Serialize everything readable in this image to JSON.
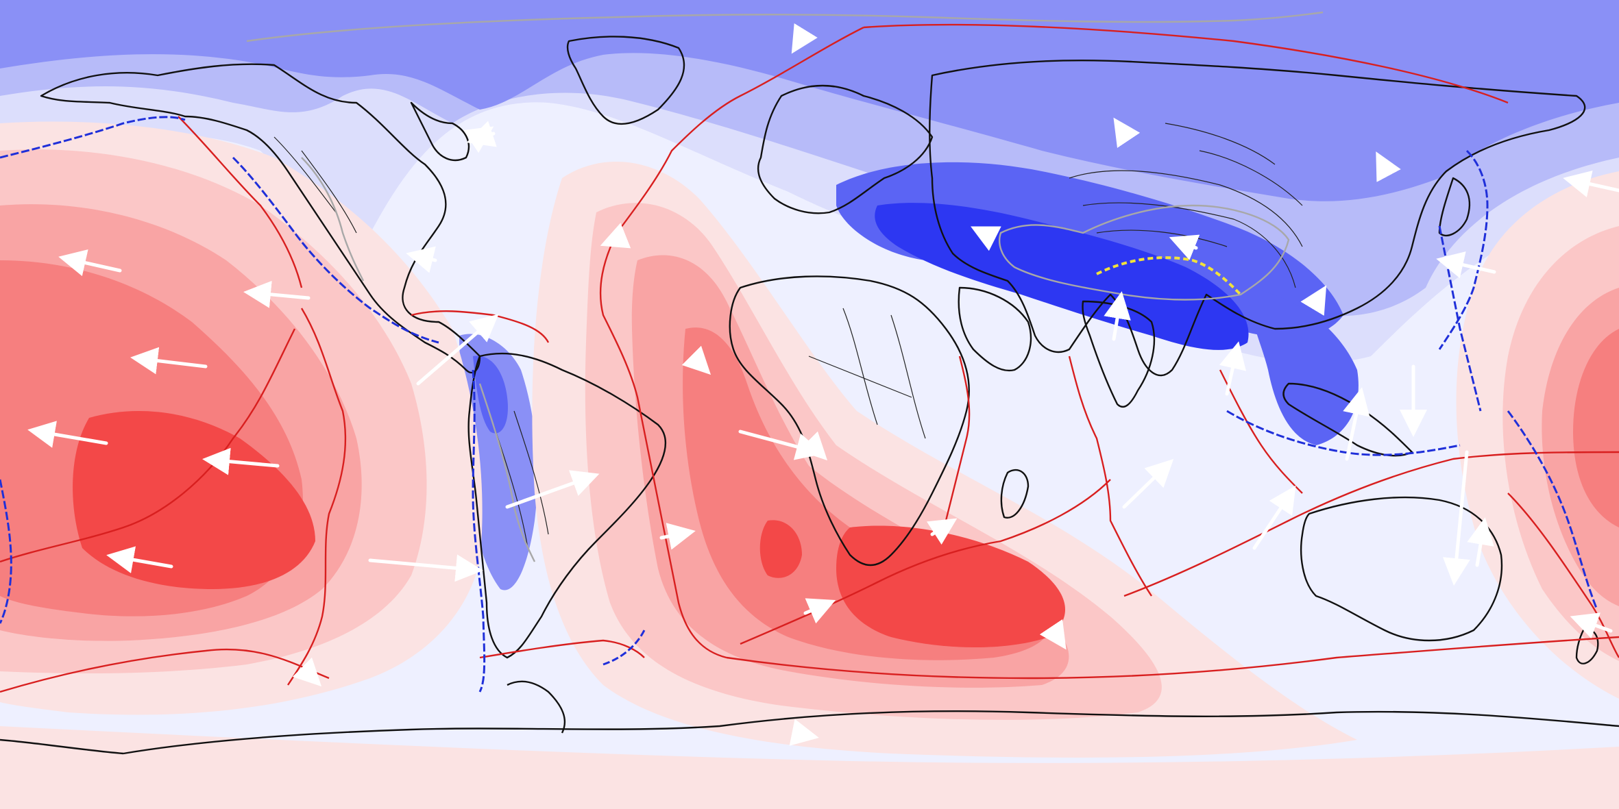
{
  "map": {
    "projection": "equirectangular",
    "layers": [
      "scalar-field-contours",
      "coastlines",
      "plate-boundaries",
      "subduction-zones",
      "collision-front",
      "velocity-arrows"
    ],
    "palette": {
      "blue_5": "#2d37f2",
      "blue_4": "#5b64f4",
      "blue_3": "#8a90f6",
      "blue_2": "#b7bbf9",
      "blue_1": "#dcdefc",
      "neutral": "#eef0ff",
      "red_1": "#fbe3e3",
      "red_2": "#fbc7c7",
      "red_3": "#f9a4a4",
      "red_4": "#f67f7f",
      "red_5": "#f34848",
      "coastline": "#111111",
      "plate_boundary": "#d81f1f",
      "subduction_zone": "#1f2fd9",
      "collision_front": "#f2e23a",
      "deformation_zone": "#a8a8a8",
      "velocity_arrow": "#ffffff"
    },
    "anomaly_highs": [
      "south-central-pacific",
      "south-africa-southern-ocean"
    ],
    "anomaly_lows": [
      "tibet-himalaya",
      "mediterranean-middle-east",
      "southeast-asia",
      "north-atlantic-arctic"
    ]
  }
}
